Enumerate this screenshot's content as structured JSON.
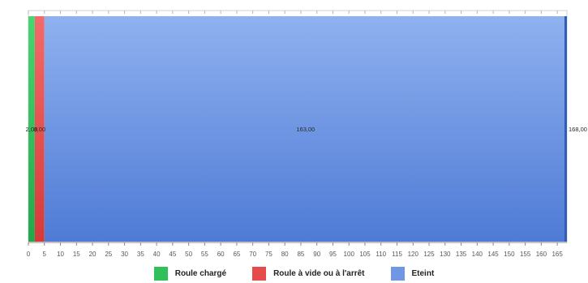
{
  "chart_data": {
    "type": "bar",
    "orientation": "horizontal",
    "stacked": true,
    "title": "",
    "xlabel": "",
    "ylabel": "",
    "xlim": [
      0,
      168
    ],
    "x_ticks": [
      0,
      5,
      10,
      15,
      20,
      25,
      30,
      35,
      40,
      45,
      50,
      55,
      60,
      65,
      70,
      75,
      80,
      85,
      90,
      95,
      100,
      105,
      110,
      115,
      120,
      125,
      130,
      135,
      140,
      145,
      150,
      155,
      160,
      165
    ],
    "grid": false,
    "legend_position": "bottom",
    "series": [
      {
        "name": "Roule chargé",
        "value": 2.0,
        "color": "#2fc05a"
      },
      {
        "name": "Roule à vide ou à l'arrêt",
        "value": 3.0,
        "color": "#e64b4b"
      },
      {
        "name": "Eteint",
        "value": 163.0,
        "color": "#6f97e3"
      }
    ],
    "data_labels": [
      {
        "text": "2,00",
        "series": "Roule chargé"
      },
      {
        "text": "3,00",
        "series": "Roule à vide ou à l'arrêt"
      },
      {
        "text": "163,00",
        "series": "Eteint"
      }
    ],
    "total_label": "168,00"
  }
}
